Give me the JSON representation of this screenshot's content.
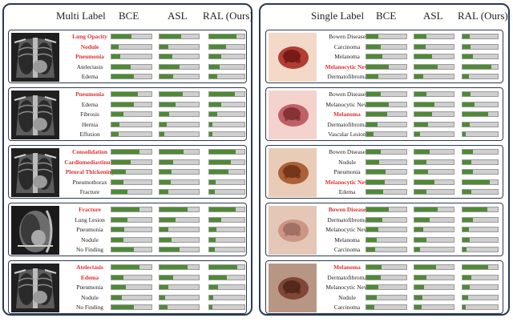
{
  "left_panel": {
    "header": {
      "title": "Multi Label",
      "cols": [
        "BCE",
        "ASL",
        "RAL (Ours)"
      ]
    },
    "cards": [
      {
        "image": "chest-xray-1",
        "rows": [
          {
            "label": "Lung Opacity",
            "highlight": true,
            "bce": 0.5,
            "asl": 0.55,
            "ral": 0.78
          },
          {
            "label": "Nodule",
            "highlight": true,
            "bce": 0.18,
            "asl": 0.22,
            "ral": 0.48
          },
          {
            "label": "Pneumonia",
            "highlight": true,
            "bce": 0.22,
            "asl": 0.32,
            "ral": 0.35
          },
          {
            "label": "Atelectasis",
            "highlight": false,
            "bce": 0.48,
            "asl": 0.52,
            "ral": 0.3
          },
          {
            "label": "Edema",
            "highlight": false,
            "bce": 0.55,
            "asl": 0.35,
            "ral": 0.22
          }
        ]
      },
      {
        "image": "chest-xray-2",
        "rows": [
          {
            "label": "Pneumonia",
            "highlight": true,
            "bce": 0.65,
            "asl": 0.6,
            "ral": 0.72
          },
          {
            "label": "Edema",
            "highlight": false,
            "bce": 0.55,
            "asl": 0.4,
            "ral": 0.35
          },
          {
            "label": "Fibrosis",
            "highlight": false,
            "bce": 0.3,
            "asl": 0.25,
            "ral": 0.22
          },
          {
            "label": "Hernia",
            "highlight": false,
            "bce": 0.2,
            "asl": 0.18,
            "ral": 0.1
          },
          {
            "label": "Effusion",
            "highlight": false,
            "bce": 0.18,
            "asl": 0.12,
            "ral": 0.08
          }
        ]
      },
      {
        "image": "chest-xray-3",
        "rows": [
          {
            "label": "Consolidation",
            "highlight": true,
            "bce": 0.7,
            "asl": 0.62,
            "ral": 0.75
          },
          {
            "label": "Cardiomediastinum",
            "highlight": true,
            "bce": 0.48,
            "asl": 0.35,
            "ral": 0.62
          },
          {
            "label": "Pleural Thickening",
            "highlight": true,
            "bce": 0.35,
            "asl": 0.3,
            "ral": 0.55
          },
          {
            "label": "Pneumothorax",
            "highlight": false,
            "bce": 0.3,
            "asl": 0.28,
            "ral": 0.18
          },
          {
            "label": "Fracture",
            "highlight": false,
            "bce": 0.4,
            "asl": 0.22,
            "ral": 0.16
          }
        ]
      },
      {
        "image": "chest-xray-lateral",
        "rows": [
          {
            "label": "Fracture",
            "highlight": true,
            "bce": 0.7,
            "asl": 0.72,
            "ral": 0.75
          },
          {
            "label": "Lung Lesion",
            "highlight": false,
            "bce": 0.4,
            "asl": 0.4,
            "ral": 0.35
          },
          {
            "label": "Pneumonia",
            "highlight": false,
            "bce": 0.32,
            "asl": 0.22,
            "ral": 0.2
          },
          {
            "label": "Nodule",
            "highlight": false,
            "bce": 0.3,
            "asl": 0.3,
            "ral": 0.18
          },
          {
            "label": "No Finding",
            "highlight": false,
            "bce": 0.55,
            "asl": 0.5,
            "ral": 0.15
          }
        ]
      },
      {
        "image": "chest-xray-4",
        "rows": [
          {
            "label": "Atelectasis",
            "highlight": true,
            "bce": 0.7,
            "asl": 0.72,
            "ral": 0.8
          },
          {
            "label": "Edema",
            "highlight": true,
            "bce": 0.3,
            "asl": 0.35,
            "ral": 0.5
          },
          {
            "label": "Pneumonia",
            "highlight": false,
            "bce": 0.35,
            "asl": 0.22,
            "ral": 0.25
          },
          {
            "label": "Nodule",
            "highlight": false,
            "bce": 0.25,
            "asl": 0.15,
            "ral": 0.12
          },
          {
            "label": "No Finding",
            "highlight": false,
            "bce": 0.55,
            "asl": 0.2,
            "ral": 0.1
          }
        ]
      }
    ]
  },
  "right_panel": {
    "header": {
      "title": "Single Label",
      "cols": [
        "BCE",
        "ASL",
        "RAL (Ours)"
      ]
    },
    "cards": [
      {
        "image": "skin-lesion-1",
        "rows": [
          {
            "label": "Bowen Disease",
            "highlight": false,
            "bce": 0.3,
            "asl": 0.3,
            "ral": 0.2
          },
          {
            "label": "Carcinoma",
            "highlight": false,
            "bce": 0.35,
            "asl": 0.28,
            "ral": 0.22
          },
          {
            "label": "Melanoma",
            "highlight": false,
            "bce": 0.4,
            "asl": 0.45,
            "ral": 0.3
          },
          {
            "label": "Melanocytic Nevi",
            "highlight": true,
            "bce": 0.55,
            "asl": 0.6,
            "ral": 0.82
          },
          {
            "label": "Dermatofibroma",
            "highlight": false,
            "bce": 0.3,
            "asl": 0.22,
            "ral": 0.18
          }
        ]
      },
      {
        "image": "skin-lesion-2",
        "rows": [
          {
            "label": "Bowen Disease",
            "highlight": false,
            "bce": 0.35,
            "asl": 0.3,
            "ral": 0.22
          },
          {
            "label": "Melanocytic Nevi",
            "highlight": false,
            "bce": 0.55,
            "asl": 0.5,
            "ral": 0.35
          },
          {
            "label": "Melanoma",
            "highlight": true,
            "bce": 0.52,
            "asl": 0.45,
            "ral": 0.72
          },
          {
            "label": "Dermatofibroma",
            "highlight": false,
            "bce": 0.28,
            "asl": 0.35,
            "ral": 0.2
          },
          {
            "label": "Vascular Lesion",
            "highlight": false,
            "bce": 0.18,
            "asl": 0.15,
            "ral": 0.1
          }
        ]
      },
      {
        "image": "skin-lesion-3",
        "rows": [
          {
            "label": "Bowen Disease",
            "highlight": false,
            "bce": 0.35,
            "asl": 0.38,
            "ral": 0.3
          },
          {
            "label": "Nodule",
            "highlight": false,
            "bce": 0.32,
            "asl": 0.3,
            "ral": 0.25
          },
          {
            "label": "Pneumonia",
            "highlight": false,
            "bce": 0.48,
            "asl": 0.35,
            "ral": 0.3
          },
          {
            "label": "Melanocytic Nevi",
            "highlight": true,
            "bce": 0.45,
            "asl": 0.5,
            "ral": 0.78
          },
          {
            "label": "Edema",
            "highlight": false,
            "bce": 0.42,
            "asl": 0.3,
            "ral": 0.25
          }
        ]
      },
      {
        "image": "skin-lesion-4",
        "rows": [
          {
            "label": "Bowen Disease",
            "highlight": true,
            "bce": 0.55,
            "asl": 0.6,
            "ral": 0.7
          },
          {
            "label": "Dermatofibroma",
            "highlight": false,
            "bce": 0.4,
            "asl": 0.38,
            "ral": 0.3
          },
          {
            "label": "Melanocytic Nevi",
            "highlight": false,
            "bce": 0.3,
            "asl": 0.22,
            "ral": 0.18
          },
          {
            "label": "Melanoma",
            "highlight": false,
            "bce": 0.25,
            "asl": 0.3,
            "ral": 0.2
          },
          {
            "label": "Carcinoma",
            "highlight": false,
            "bce": 0.22,
            "asl": 0.15,
            "ral": 0.12
          }
        ]
      },
      {
        "image": "skin-lesion-5",
        "rows": [
          {
            "label": "Melanoma",
            "highlight": true,
            "bce": 0.38,
            "asl": 0.55,
            "ral": 0.72
          },
          {
            "label": "Dermatofibroma",
            "highlight": false,
            "bce": 0.35,
            "asl": 0.3,
            "ral": 0.25
          },
          {
            "label": "Melanocytic Nevi",
            "highlight": false,
            "bce": 0.3,
            "asl": 0.25,
            "ral": 0.2
          },
          {
            "label": "Nodule",
            "highlight": false,
            "bce": 0.25,
            "asl": 0.2,
            "ral": 0.15
          },
          {
            "label": "Carcinoma",
            "highlight": false,
            "bce": 0.2,
            "asl": 0.18,
            "ral": 0.1
          }
        ]
      }
    ]
  }
}
